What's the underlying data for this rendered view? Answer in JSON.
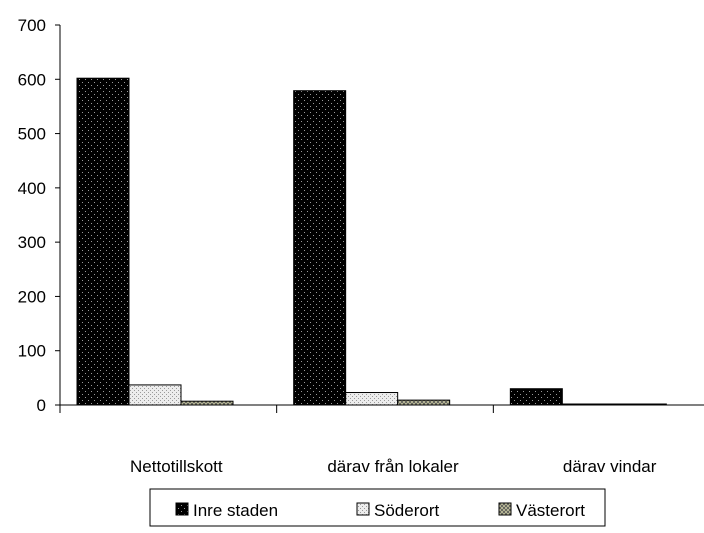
{
  "chart_data": {
    "type": "bar",
    "title": "",
    "xlabel": "",
    "ylabel": "",
    "categories": [
      "Nettotillskott",
      "därav från lokaler",
      "därav vindar"
    ],
    "series": [
      {
        "name": "Inre staden",
        "values": [
          602,
          579,
          30
        ]
      },
      {
        "name": "Söderort",
        "values": [
          37,
          23,
          1
        ]
      },
      {
        "name": "Västerort",
        "values": [
          7,
          9,
          1
        ]
      }
    ],
    "ylim": [
      0,
      700
    ],
    "yticks": [
      "0",
      "100",
      "200",
      "300",
      "400",
      "500",
      "600",
      "700"
    ],
    "grid": false,
    "legend_position": "bottom",
    "series_colors": [
      "#000000",
      "#e8e8e8",
      "#b0b08a"
    ],
    "series_patterns": [
      "dots-on-black",
      "dots-on-light",
      "crosshatch"
    ]
  }
}
